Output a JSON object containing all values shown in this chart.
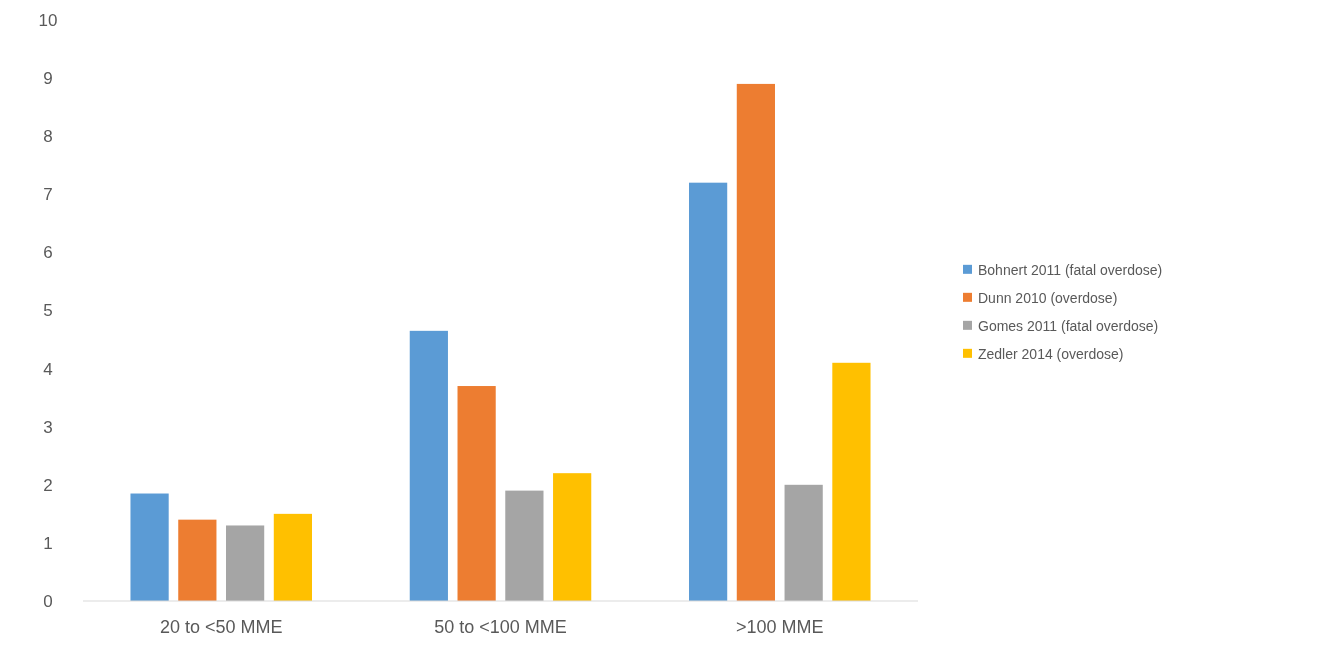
{
  "chart_data": {
    "type": "bar",
    "categories": [
      "20 to <50 MME",
      "50 to <100 MME",
      ">100 MME"
    ],
    "series": [
      {
        "name": "Bohnert 2011 (fatal overdose)",
        "color": "#5b9bd5",
        "values": [
          1.85,
          4.65,
          7.2
        ]
      },
      {
        "name": "Dunn 2010 (overdose)",
        "color": "#ed7d31",
        "values": [
          1.4,
          3.7,
          8.9
        ]
      },
      {
        "name": "Gomes 2011 (fatal overdose)",
        "color": "#a5a5a5",
        "values": [
          1.3,
          1.9,
          2.0
        ]
      },
      {
        "name": "Zedler 2014 (overdose)",
        "color": "#ffc000",
        "values": [
          1.5,
          2.2,
          4.1
        ]
      }
    ],
    "ylim": [
      0,
      10
    ],
    "yticks": [
      0,
      1,
      2,
      3,
      4,
      5,
      6,
      7,
      8,
      9,
      10
    ],
    "grid": false,
    "legend": "right"
  }
}
